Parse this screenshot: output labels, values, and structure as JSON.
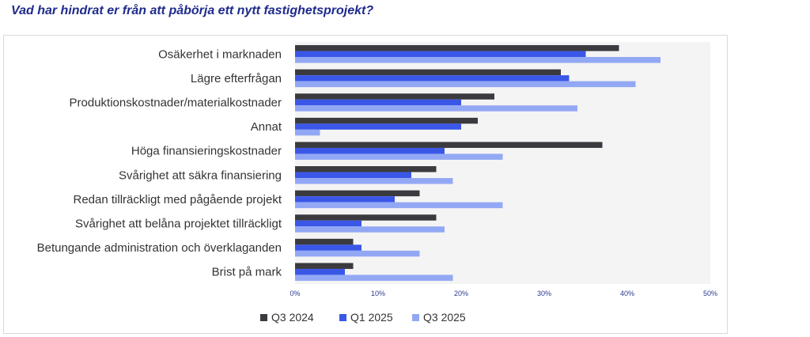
{
  "header": {
    "title": "Vad har hindrat er från att påbörja ett nytt fastighetsprojekt?"
  },
  "colors": {
    "q3_2024": "#3a3a3f",
    "q1_2025": "#3a57e8",
    "q3_2025": "#93a8f4",
    "plot_bg": "#f4f4f4"
  },
  "chart_data": {
    "type": "bar",
    "orientation": "horizontal",
    "title": "Vad har hindrat er från att påbörja ett nytt fastighetsprojekt?",
    "categories": [
      "Osäkerhet i marknaden",
      "Lägre efterfrågan",
      "Produktionskostnader/materialkostnader",
      "Annat",
      "Höga finansieringskostnader",
      "Svårighet att säkra finansiering",
      "Redan tillräckligt med pågående projekt",
      "Svårighet att belåna projektet tillräckligt",
      "Betungande administration och överklaganden",
      "Brist på mark"
    ],
    "series": [
      {
        "name": "Q3 2024",
        "values": [
          39,
          32,
          24,
          22,
          37,
          17,
          15,
          17,
          7,
          7
        ]
      },
      {
        "name": "Q1 2025",
        "values": [
          35,
          33,
          20,
          20,
          18,
          14,
          12,
          8,
          8,
          6
        ]
      },
      {
        "name": "Q3 2025",
        "values": [
          44,
          41,
          34,
          3,
          25,
          19,
          25,
          18,
          15,
          19
        ]
      }
    ],
    "xlim": [
      0,
      50
    ],
    "xticks": [
      "0%",
      "10%",
      "20%",
      "30%",
      "40%",
      "50%"
    ],
    "xlabel": "",
    "ylabel": "",
    "grid": false,
    "legend_position": "bottom-center"
  }
}
